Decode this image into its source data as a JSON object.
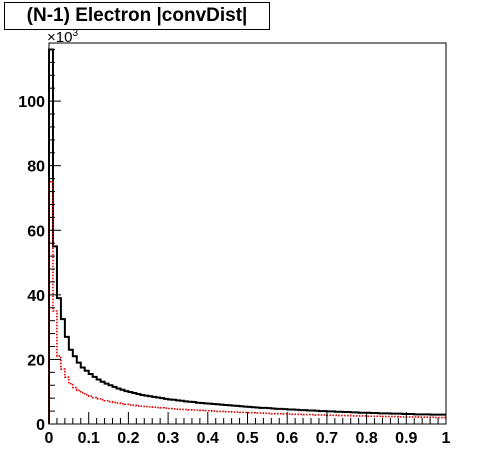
{
  "chart_data": {
    "type": "histogram",
    "title": "(N-1) Electron |convDist|",
    "xlabel": "",
    "ylabel": "",
    "xlim": [
      0,
      1
    ],
    "ylim": [
      0,
      118
    ],
    "y_exponent_label": "×10",
    "y_exponent_power": "3",
    "x_ticks": [
      0,
      0.1,
      0.2,
      0.3,
      0.4,
      0.5,
      0.6,
      0.7,
      0.8,
      0.9,
      1
    ],
    "x_tick_labels": [
      "0",
      "0.1",
      "0.2",
      "0.3",
      "0.4",
      "0.5",
      "0.6",
      "0.7",
      "0.8",
      "0.9",
      "1"
    ],
    "y_ticks": [
      0,
      20,
      40,
      60,
      80,
      100
    ],
    "y_tick_labels": [
      "0",
      "20",
      "40",
      "60",
      "80",
      "100"
    ],
    "bin_width": 0.01,
    "grid": false,
    "series": [
      {
        "color": "#000000",
        "line_style": "solid",
        "values": [
          116,
          55,
          39,
          32.5,
          27,
          23,
          21,
          19,
          17.5,
          16.5,
          15.5,
          14.6,
          13.8,
          13.1,
          12.5,
          12,
          11.5,
          11,
          10.6,
          10.2,
          9.9,
          9.6,
          9.3,
          9.0,
          8.8,
          8.6,
          8.4,
          8.2,
          8.0,
          7.8,
          7.6,
          7.5,
          7.3,
          7.2,
          7.0,
          6.9,
          6.8,
          6.6,
          6.5,
          6.4,
          6.3,
          6.2,
          6.1,
          6.0,
          5.9,
          5.8,
          5.7,
          5.6,
          5.5,
          5.4,
          5.3,
          5.2,
          5.1,
          5.0,
          5.0,
          4.9,
          4.8,
          4.7,
          4.7,
          4.6,
          4.5,
          4.5,
          4.4,
          4.3,
          4.3,
          4.2,
          4.2,
          4.1,
          4.0,
          4.0,
          3.9,
          3.9,
          3.8,
          3.8,
          3.7,
          3.7,
          3.6,
          3.6,
          3.5,
          3.5,
          3.5,
          3.4,
          3.4,
          3.3,
          3.3,
          3.3,
          3.2,
          3.2,
          3.2,
          3.1,
          3.1,
          3.1,
          3.0,
          3.0,
          3.0,
          3.0,
          2.9,
          2.9,
          2.9,
          2.9
        ]
      },
      {
        "color": "#e00000",
        "line_style": "dotted",
        "values": [
          75,
          35,
          21,
          17,
          14.5,
          12.5,
          11.3,
          10.4,
          9.7,
          9.1,
          8.6,
          8.2,
          7.8,
          7.5,
          7.2,
          6.9,
          6.7,
          6.5,
          6.3,
          6.1,
          5.9,
          5.8,
          5.6,
          5.5,
          5.4,
          5.3,
          5.2,
          5.1,
          5.0,
          4.9,
          4.8,
          4.7,
          4.6,
          4.5,
          4.5,
          4.4,
          4.3,
          4.3,
          4.2,
          4.1,
          4.1,
          4.0,
          3.9,
          3.9,
          3.8,
          3.8,
          3.7,
          3.7,
          3.6,
          3.6,
          3.5,
          3.5,
          3.4,
          3.4,
          3.3,
          3.3,
          3.2,
          3.2,
          3.2,
          3.1,
          3.1,
          3.0,
          3.0,
          3.0,
          2.9,
          2.9,
          2.9,
          2.8,
          2.8,
          2.8,
          2.7,
          2.7,
          2.7,
          2.6,
          2.6,
          2.6,
          2.5,
          2.5,
          2.5,
          2.5,
          2.4,
          2.4,
          2.4,
          2.4,
          2.3,
          2.3,
          2.3,
          2.3,
          2.2,
          2.2,
          2.2,
          2.2,
          2.2,
          2.1,
          2.1,
          2.1,
          2.1,
          2.0,
          2.0,
          2.0
        ]
      }
    ]
  }
}
